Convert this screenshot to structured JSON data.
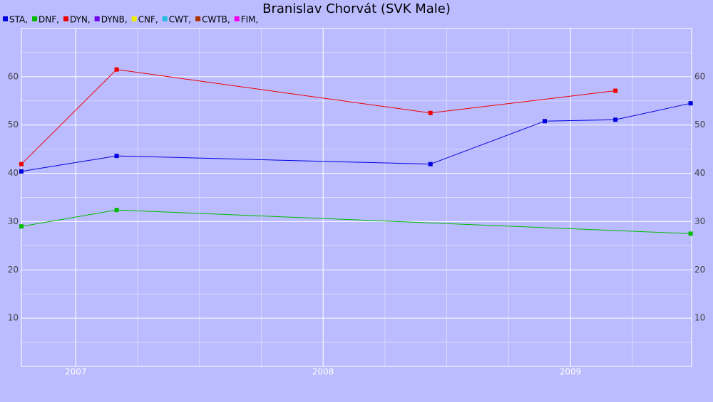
{
  "chart_data": {
    "type": "line",
    "title": "Branislav Chorvát (SVK Male)",
    "xlim": [
      2006.78,
      2009.49
    ],
    "xticks": [
      2007,
      2008,
      2009
    ],
    "ylim": [
      0,
      70
    ],
    "yticks": [
      10,
      20,
      30,
      40,
      50,
      60
    ],
    "grid": true,
    "series": [
      {
        "name": "STA,",
        "color": "#0000dd",
        "x": [
          2006.78,
          2007.165,
          2008.434,
          2008.896,
          2009.182,
          2009.486
        ],
        "values": [
          40.4,
          43.6,
          41.9,
          50.8,
          51.1,
          54.5
        ]
      },
      {
        "name": "DNF,",
        "color": "#00bb00",
        "x": [
          2006.78,
          2007.165,
          2009.486
        ],
        "values": [
          29,
          32.4,
          27.5
        ]
      },
      {
        "name": "DYN,",
        "color": "#ee0000",
        "x": [
          2006.78,
          2007.165,
          2008.434,
          2009.182
        ],
        "values": [
          41.9,
          61.5,
          52.5,
          57.1
        ]
      },
      {
        "name": "DYNB,",
        "color": "#6a00ee",
        "x": [],
        "values": []
      },
      {
        "name": "CNF,",
        "color": "#eeee00",
        "x": [],
        "values": []
      },
      {
        "name": "CWT,",
        "color": "#22bbdd",
        "x": [],
        "values": []
      },
      {
        "name": "CWTB,",
        "color": "#aa3300",
        "x": [],
        "values": []
      },
      {
        "name": "FIM,",
        "color": "#ee00ee",
        "x": [],
        "values": []
      }
    ]
  }
}
